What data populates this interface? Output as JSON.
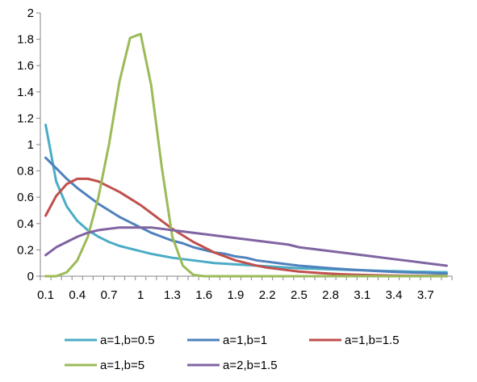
{
  "chart_data": {
    "type": "line",
    "title": "",
    "xlabel": "",
    "ylabel": "",
    "ylim": [
      0,
      2
    ],
    "y_ticks": [
      "0",
      "0.2",
      "0.4",
      "0.6",
      "0.8",
      "1",
      "1.2",
      "1.4",
      "1.6",
      "1.8",
      "2"
    ],
    "x": [
      0.1,
      0.2,
      0.3,
      0.4,
      0.5,
      0.6,
      0.7,
      0.8,
      0.9,
      1.0,
      1.1,
      1.2,
      1.3,
      1.4,
      1.5,
      1.6,
      1.7,
      1.8,
      1.9,
      2.0,
      2.1,
      2.2,
      2.3,
      2.4,
      2.5,
      2.6,
      2.7,
      2.8,
      2.9,
      3.0,
      3.1,
      3.2,
      3.3,
      3.4,
      3.5,
      3.6,
      3.7,
      3.8,
      3.9
    ],
    "x_tick_labels": [
      "0.1",
      "0.4",
      "0.7",
      "1",
      "1.3",
      "1.6",
      "1.9",
      "2.2",
      "2.5",
      "2.8",
      "3.1",
      "3.4",
      "3.7"
    ],
    "grid": false,
    "legend_position": "bottom",
    "series": [
      {
        "name": "a=1,b=0.5",
        "color": "#4bacc6",
        "values": [
          1.15,
          0.72,
          0.53,
          0.42,
          0.35,
          0.3,
          0.26,
          0.23,
          0.21,
          0.19,
          0.17,
          0.155,
          0.14,
          0.13,
          0.12,
          0.11,
          0.1,
          0.095,
          0.09,
          0.085,
          0.08,
          0.075,
          0.07,
          0.065,
          0.06,
          0.058,
          0.055,
          0.052,
          0.05,
          0.047,
          0.045,
          0.043,
          0.04,
          0.038,
          0.036,
          0.034,
          0.033,
          0.031,
          0.03
        ]
      },
      {
        "name": "a=1,b=1",
        "color": "#4f81bd",
        "values": [
          0.9,
          0.82,
          0.74,
          0.67,
          0.61,
          0.55,
          0.5,
          0.45,
          0.41,
          0.37,
          0.33,
          0.3,
          0.27,
          0.25,
          0.22,
          0.2,
          0.18,
          0.17,
          0.15,
          0.14,
          0.12,
          0.11,
          0.1,
          0.09,
          0.08,
          0.074,
          0.067,
          0.061,
          0.055,
          0.05,
          0.045,
          0.041,
          0.037,
          0.033,
          0.03,
          0.027,
          0.025,
          0.022,
          0.02
        ]
      },
      {
        "name": "a=1,b=1.5",
        "color": "#c0504d",
        "values": [
          0.46,
          0.61,
          0.7,
          0.74,
          0.74,
          0.72,
          0.68,
          0.64,
          0.59,
          0.54,
          0.48,
          0.42,
          0.36,
          0.31,
          0.26,
          0.22,
          0.18,
          0.15,
          0.12,
          0.1,
          0.08,
          0.065,
          0.055,
          0.045,
          0.035,
          0.03,
          0.024,
          0.019,
          0.015,
          0.012,
          0.01,
          0.008,
          0.006,
          0.005,
          0.004,
          0.003,
          0.002,
          0.002,
          0.001
        ]
      },
      {
        "name": "a=1,b=5",
        "color": "#9bbb59",
        "values": [
          0.0,
          0.0,
          0.03,
          0.12,
          0.3,
          0.6,
          1.0,
          1.48,
          1.81,
          1.84,
          1.45,
          0.83,
          0.3,
          0.08,
          0.01,
          0.0,
          0.0,
          0.0,
          0.0,
          0.0,
          0.0,
          0.0,
          0.0,
          0.0,
          0.0,
          0.0,
          0.0,
          0.0,
          0.0,
          0.0,
          0.0,
          0.0,
          0.0,
          0.0,
          0.0,
          0.0,
          0.0,
          0.0,
          0.0
        ]
      },
      {
        "name": "a=2,b=1.5",
        "color": "#8064a2",
        "values": [
          0.16,
          0.22,
          0.26,
          0.3,
          0.33,
          0.35,
          0.36,
          0.37,
          0.37,
          0.37,
          0.37,
          0.36,
          0.35,
          0.34,
          0.33,
          0.32,
          0.31,
          0.3,
          0.29,
          0.28,
          0.27,
          0.26,
          0.25,
          0.24,
          0.22,
          0.21,
          0.2,
          0.19,
          0.18,
          0.17,
          0.16,
          0.15,
          0.14,
          0.13,
          0.12,
          0.11,
          0.1,
          0.09,
          0.08
        ]
      }
    ]
  }
}
